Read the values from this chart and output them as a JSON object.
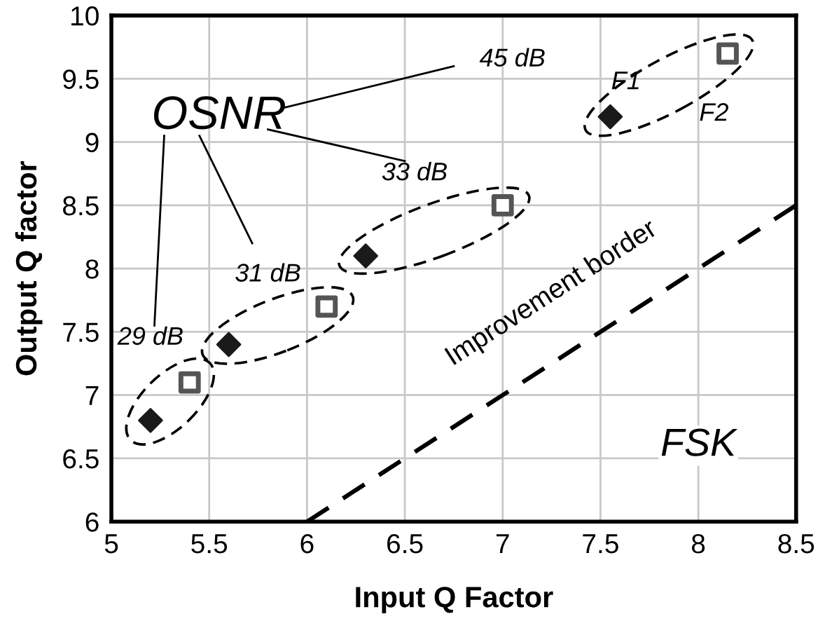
{
  "chart_data": {
    "type": "scatter",
    "xlabel": "Input Q Factor",
    "ylabel": "Output Q factor",
    "xlim": [
      5,
      8.5
    ],
    "xticks": [
      5,
      5.5,
      6,
      6.5,
      7,
      7.5,
      8,
      8.5
    ],
    "ylim": [
      6,
      10
    ],
    "yticks": [
      6,
      6.5,
      7,
      7.5,
      8,
      8.5,
      9,
      9.5,
      10
    ],
    "grid": true,
    "legend": false,
    "series": [
      {
        "name": "F1",
        "color": "#1a1a1a",
        "marker": "diamond",
        "x": [
          5.2,
          5.6,
          6.3,
          7.55
        ],
        "values": [
          6.8,
          7.4,
          8.1,
          9.2
        ]
      },
      {
        "name": "F2",
        "color": "#555555",
        "marker": "square",
        "x": [
          5.4,
          6.1,
          7.0,
          8.15
        ],
        "values": [
          7.1,
          7.7,
          8.5,
          9.7
        ]
      },
      {
        "name": "Improvement border",
        "type": "line",
        "color": "#000000",
        "line_style": "dashed",
        "marker": "none",
        "x": [
          6,
          8.5
        ],
        "values": [
          6,
          8.5
        ]
      }
    ],
    "annotations": [
      "OSNR",
      "29 dB",
      "31 dB",
      "33 dB",
      "45 dB",
      "FSK"
    ]
  }
}
